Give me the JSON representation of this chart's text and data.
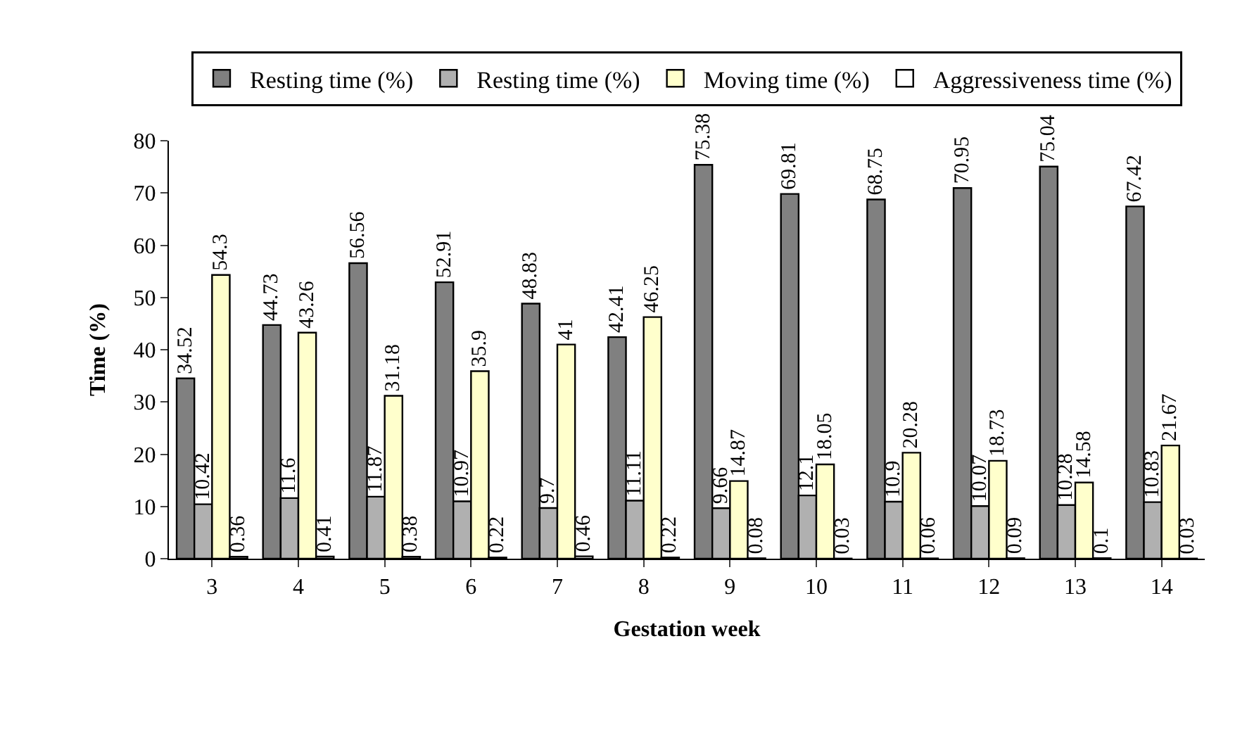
{
  "chart_data": {
    "type": "bar",
    "xlabel": "Gestation week",
    "ylabel": "Time (%)",
    "categories": [
      "3",
      "4",
      "5",
      "6",
      "7",
      "8",
      "9",
      "10",
      "11",
      "12",
      "13",
      "14"
    ],
    "series": [
      {
        "name": "Resting time (%)",
        "color": "#808080",
        "values": [
          34.52,
          44.73,
          56.56,
          52.91,
          48.83,
          42.41,
          75.38,
          69.81,
          68.75,
          70.95,
          75.04,
          67.42
        ]
      },
      {
        "name": "Resting time (%)",
        "color": "#b0b0b0",
        "values": [
          10.42,
          11.6,
          11.87,
          10.97,
          9.7,
          11.11,
          9.66,
          12.1,
          10.9,
          10.07,
          10.28,
          10.83
        ]
      },
      {
        "name": "Moving time (%)",
        "color": "#ffffcc",
        "values": [
          54.3,
          43.26,
          31.18,
          35.9,
          41,
          46.25,
          14.87,
          18.05,
          20.28,
          18.73,
          14.58,
          21.67
        ]
      },
      {
        "name": "Aggressiveness time (%)",
        "color": "#ffffff",
        "values": [
          0.36,
          0.41,
          0.38,
          0.22,
          0.46,
          0.22,
          0.08,
          0.03,
          0.06,
          0.09,
          0.1,
          0.03
        ]
      }
    ],
    "ylim": [
      0,
      80
    ],
    "yticks": [
      0,
      10,
      20,
      30,
      40,
      50,
      60,
      70,
      80
    ],
    "data_labels": true,
    "legend": "top"
  }
}
